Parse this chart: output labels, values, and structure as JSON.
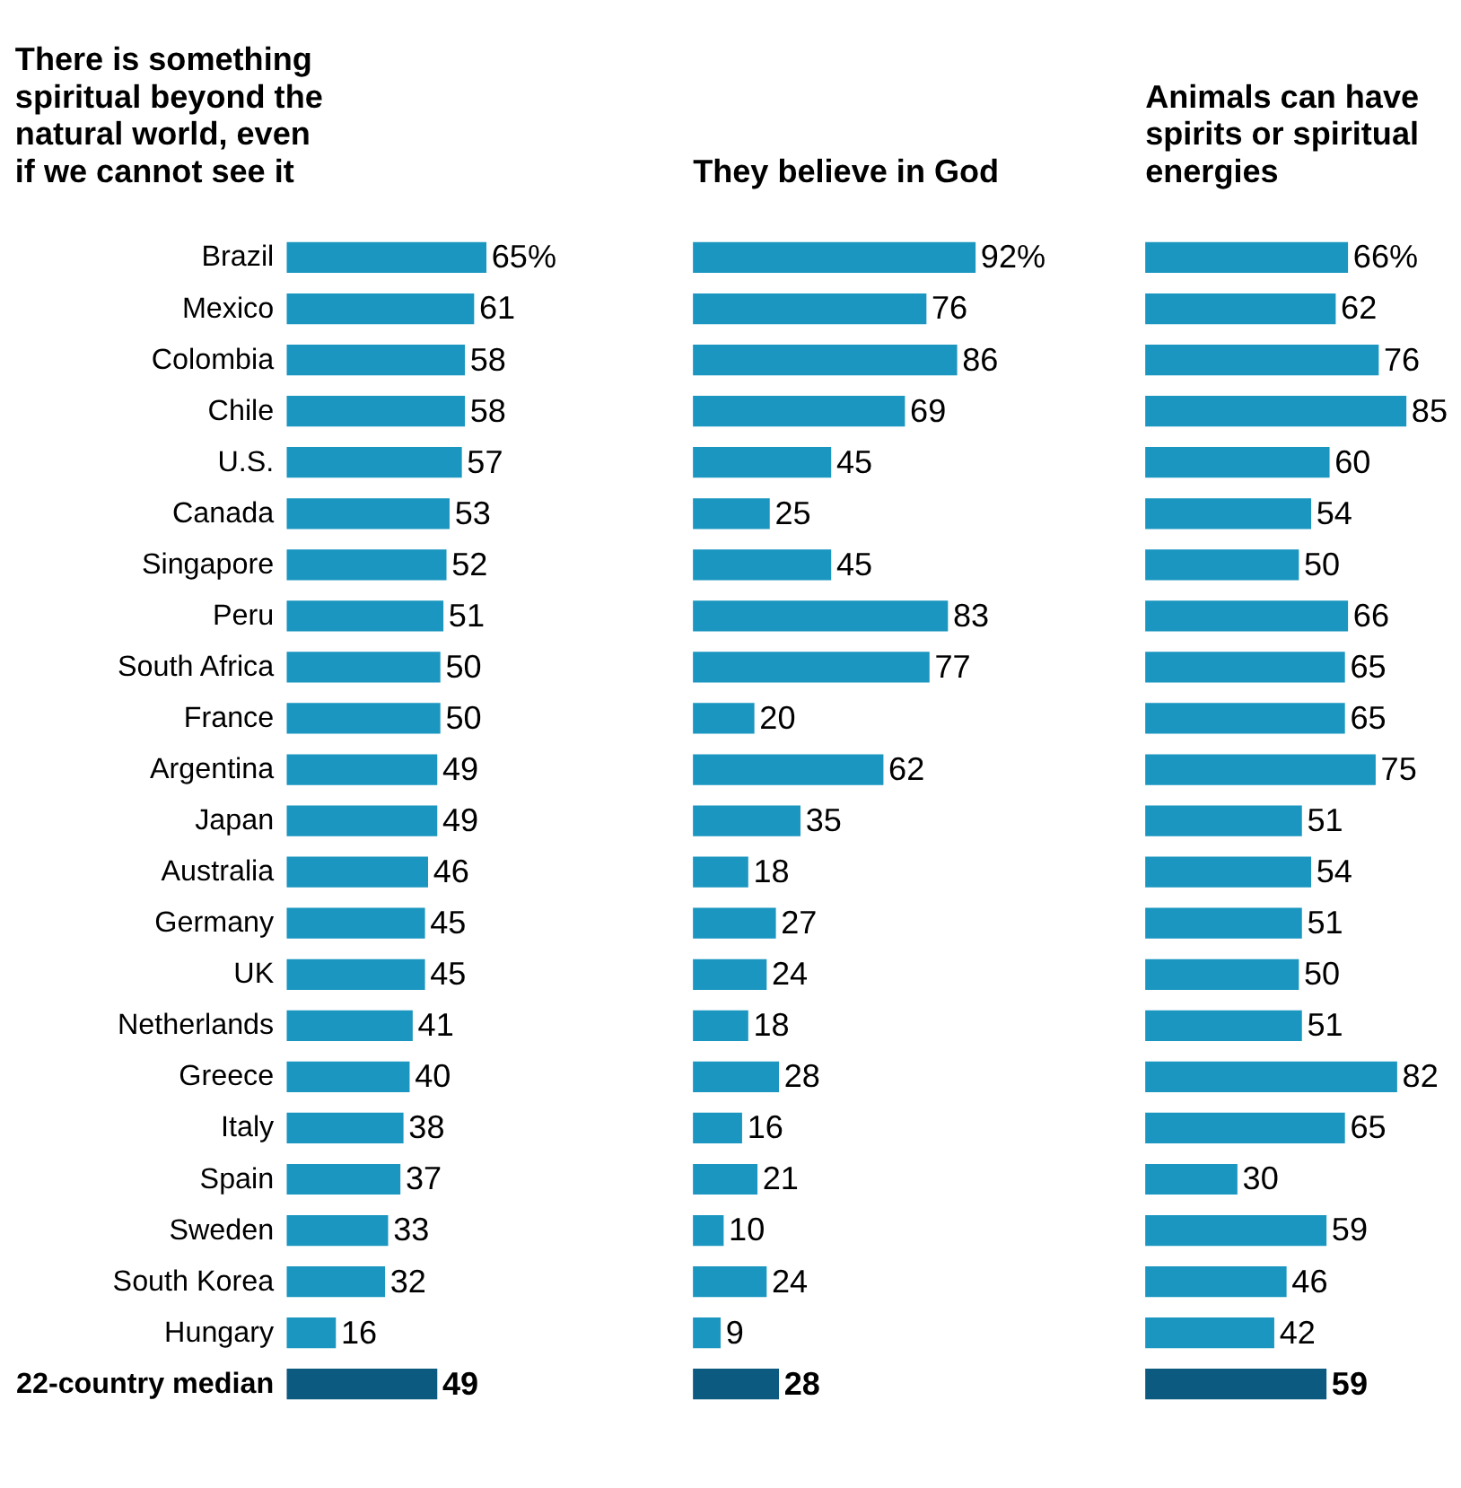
{
  "chart_data": [
    {
      "type": "bar",
      "orientation": "horizontal",
      "title": "There is something spiritual beyond the natural world, even if we cannot see it",
      "categories": [
        "Brazil",
        "Mexico",
        "Colombia",
        "Chile",
        "U.S.",
        "Canada",
        "Singapore",
        "Peru",
        "South Africa",
        "France",
        "Argentina",
        "Japan",
        "Australia",
        "Germany",
        "UK",
        "Netherlands",
        "Greece",
        "Italy",
        "Spain",
        "Sweden",
        "South Korea",
        "Hungary",
        "22-country median"
      ],
      "values": [
        65,
        61,
        58,
        58,
        57,
        53,
        52,
        51,
        50,
        50,
        49,
        49,
        46,
        45,
        45,
        41,
        40,
        38,
        37,
        33,
        32,
        16,
        49
      ],
      "value_labels": [
        "65%",
        "61",
        "58",
        "58",
        "57",
        "53",
        "52",
        "51",
        "50",
        "50",
        "49",
        "49",
        "46",
        "45",
        "45",
        "41",
        "40",
        "38",
        "37",
        "33",
        "32",
        "16",
        "49"
      ],
      "colors": [
        "#1a96c0",
        "#1a96c0",
        "#1a96c0",
        "#1a96c0",
        "#1a96c0",
        "#1a96c0",
        "#1a96c0",
        "#1a96c0",
        "#1a96c0",
        "#1a96c0",
        "#1a96c0",
        "#1a96c0",
        "#1a96c0",
        "#1a96c0",
        "#1a96c0",
        "#1a96c0",
        "#1a96c0",
        "#1a96c0",
        "#1a96c0",
        "#1a96c0",
        "#1a96c0",
        "#1a96c0",
        "#0d5a80"
      ],
      "tick_labels": "y",
      "grid": false
    },
    {
      "type": "bar",
      "orientation": "horizontal",
      "title": "They believe in God",
      "categories": [
        null,
        null,
        null,
        null,
        null,
        null,
        null,
        null,
        null,
        null,
        null,
        null,
        null,
        null,
        null,
        null,
        null,
        null,
        null,
        null,
        null,
        null,
        null
      ],
      "values": [
        92,
        76,
        86,
        69,
        45,
        25,
        45,
        83,
        77,
        20,
        62,
        35,
        18,
        27,
        24,
        18,
        28,
        16,
        21,
        10,
        24,
        9,
        28
      ],
      "value_labels": [
        "92%",
        "76",
        "86",
        "69",
        "45",
        "25",
        "45",
        "83",
        "77",
        "20",
        "62",
        "35",
        "18",
        "27",
        "24",
        "18",
        "28",
        "16",
        "21",
        "10",
        "24",
        "9",
        "28"
      ],
      "colors": [
        "#1a96c0",
        "#1a96c0",
        "#1a96c0",
        "#1a96c0",
        "#1a96c0",
        "#1a96c0",
        "#1a96c0",
        "#1a96c0",
        "#1a96c0",
        "#1a96c0",
        "#1a96c0",
        "#1a96c0",
        "#1a96c0",
        "#1a96c0",
        "#1a96c0",
        "#1a96c0",
        "#1a96c0",
        "#1a96c0",
        "#1a96c0",
        "#1a96c0",
        "#1a96c0",
        "#1a96c0",
        "#0d5a80"
      ],
      "tick_labels": false,
      "grid": false
    },
    {
      "type": "bar",
      "orientation": "horizontal",
      "title": "Animals can have spirits or spiritual energies",
      "categories": [
        null,
        null,
        null,
        null,
        null,
        null,
        null,
        null,
        null,
        null,
        null,
        null,
        null,
        null,
        null,
        null,
        null,
        null,
        null,
        null,
        null,
        null,
        null
      ],
      "values": [
        66,
        62,
        76,
        85,
        60,
        54,
        50,
        66,
        65,
        65,
        75,
        51,
        54,
        51,
        50,
        51,
        82,
        65,
        30,
        59,
        46,
        42,
        59
      ],
      "value_labels": [
        "66%",
        "62",
        "76",
        "85",
        "60",
        "54",
        "50",
        "66",
        "65",
        "65",
        "75",
        "51",
        "54",
        "51",
        "50",
        "51",
        "82",
        "65",
        "30",
        "59",
        "46",
        "42",
        "59"
      ],
      "colors": [
        "#1a96c0",
        "#1a96c0",
        "#1a96c0",
        "#1a96c0",
        "#1a96c0",
        "#1a96c0",
        "#1a96c0",
        "#1a96c0",
        "#1a96c0",
        "#1a96c0",
        "#1a96c0",
        "#1a96c0",
        "#1a96c0",
        "#1a96c0",
        "#1a96c0",
        "#1a96c0",
        "#1a96c0",
        "#1a96c0",
        "#1a96c0",
        "#1a96c0",
        "#1a96c0",
        "#1a96c0",
        "#0d5a80"
      ],
      "tick_labels": false,
      "grid": false
    }
  ]
}
